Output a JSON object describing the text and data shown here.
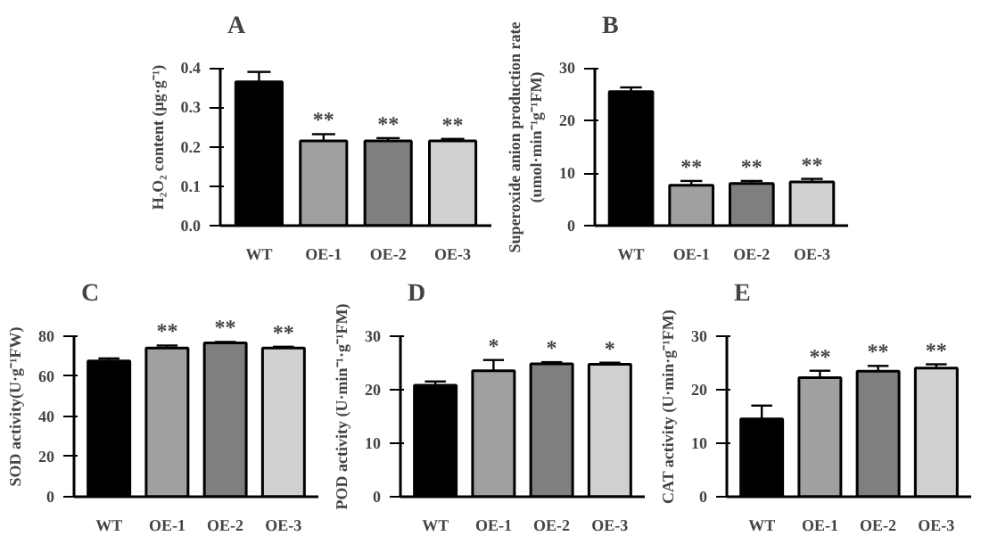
{
  "chart_data": [
    {
      "type": "bar",
      "title": "A",
      "ylabel": "H₂O₂ content (μg·g⁻¹)",
      "categories": [
        "WT",
        "OE-1",
        "OE-2",
        "OE-3"
      ],
      "values": [
        0.365,
        0.215,
        0.215,
        0.215
      ],
      "colors": [
        "#000000",
        "#a0a0a0",
        "#7f7f7f",
        "#d0d0d0"
      ],
      "errors": [
        [
          0.365,
          0.39
        ],
        [
          0.215,
          0.232
        ],
        [
          0.215,
          0.222
        ],
        [
          0.215,
          0.22
        ]
      ],
      "ylim": [
        0,
        0.4
      ],
      "yticks": [
        {
          "value": 0,
          "label": "0.0"
        },
        0.1,
        0.2,
        0.3,
        0.4
      ],
      "grid": false,
      "annotations": [
        {
          "text": "**",
          "x": "OE-1",
          "y": 0.232
        },
        {
          "text": "**",
          "x": "OE-2",
          "y": 0.222
        },
        {
          "text": "**",
          "x": "OE-3",
          "y": 0.22
        }
      ]
    },
    {
      "type": "bar",
      "title": "B",
      "ylabel": "Superoxide anion production rate\n(umol·min⁻¹g⁻¹FM)",
      "categories": [
        "WT",
        "OE-1",
        "OE-2",
        "OE-3"
      ],
      "values": [
        25.5,
        7.7,
        8.0,
        8.3
      ],
      "colors": [
        "#000000",
        "#a0a0a0",
        "#7f7f7f",
        "#d0d0d0"
      ],
      "errors": [
        [
          25.5,
          26.3
        ],
        [
          7.7,
          8.5
        ],
        [
          8.0,
          8.5
        ],
        [
          8.3,
          8.9
        ]
      ],
      "ylim": [
        0,
        30
      ],
      "yticks": [
        0,
        10,
        20,
        30
      ],
      "grid": false,
      "annotations": [
        {
          "text": "**",
          "x": "OE-1",
          "y": 8.5
        },
        {
          "text": "**",
          "x": "OE-2",
          "y": 8.5
        },
        {
          "text": "**",
          "x": "OE-3",
          "y": 8.9
        }
      ]
    },
    {
      "type": "bar",
      "title": "C",
      "ylabel": "SOD activity(U·g⁻¹FW)",
      "categories": [
        "WT",
        "OE-1",
        "OE-2",
        "OE-3"
      ],
      "values": [
        67.5,
        74.0,
        76.5,
        74.0
      ],
      "colors": [
        "#000000",
        "#a0a0a0",
        "#7f7f7f",
        "#d0d0d0"
      ],
      "errors": [
        [
          67.5,
          68.8
        ],
        [
          74.0,
          75.2
        ],
        [
          76.5,
          77.0
        ],
        [
          74.0,
          74.6
        ]
      ],
      "ylim": [
        0,
        80
      ],
      "yticks": [
        0,
        20,
        40,
        60,
        80
      ],
      "grid": false,
      "annotations": [
        {
          "text": "**",
          "x": "OE-1",
          "y": 75.2
        },
        {
          "text": "**",
          "x": "OE-2",
          "y": 77.0
        },
        {
          "text": "**",
          "x": "OE-3",
          "y": 74.6
        }
      ]
    },
    {
      "type": "bar",
      "title": "D",
      "ylabel": "POD activity (U·min⁻¹·g⁻¹FM)",
      "categories": [
        "WT",
        "OE-1",
        "OE-2",
        "OE-3"
      ],
      "values": [
        20.8,
        23.5,
        24.8,
        24.7
      ],
      "colors": [
        "#000000",
        "#a0a0a0",
        "#7f7f7f",
        "#d0d0d0"
      ],
      "errors": [
        [
          20.8,
          21.5
        ],
        [
          23.5,
          25.5
        ],
        [
          24.8,
          25.1
        ],
        [
          24.7,
          25.0
        ]
      ],
      "ylim": [
        0,
        30
      ],
      "yticks": [
        0,
        10,
        20,
        30
      ],
      "grid": false,
      "annotations": [
        {
          "text": "*",
          "x": "OE-1",
          "y": 25.5
        },
        {
          "text": "*",
          "x": "OE-2",
          "y": 25.1
        },
        {
          "text": "*",
          "x": "OE-3",
          "y": 25.0
        }
      ]
    },
    {
      "type": "bar",
      "title": "E",
      "ylabel": "CAT activity (U·min·g⁻¹FM)",
      "categories": [
        "WT",
        "OE-1",
        "OE-2",
        "OE-3"
      ],
      "values": [
        14.5,
        22.2,
        23.4,
        24.0
      ],
      "colors": [
        "#000000",
        "#a0a0a0",
        "#7f7f7f",
        "#d0d0d0"
      ],
      "errors": [
        [
          14.5,
          17.0
        ],
        [
          22.2,
          23.5
        ],
        [
          23.4,
          24.4
        ],
        [
          24.0,
          24.7
        ]
      ],
      "ylim": [
        0,
        30
      ],
      "yticks": [
        0,
        10,
        20,
        30
      ],
      "grid": false,
      "annotations": [
        {
          "text": "**",
          "x": "OE-1",
          "y": 23.5
        },
        {
          "text": "**",
          "x": "OE-2",
          "y": 24.4
        },
        {
          "text": "**",
          "x": "OE-3",
          "y": 24.7
        }
      ]
    }
  ]
}
